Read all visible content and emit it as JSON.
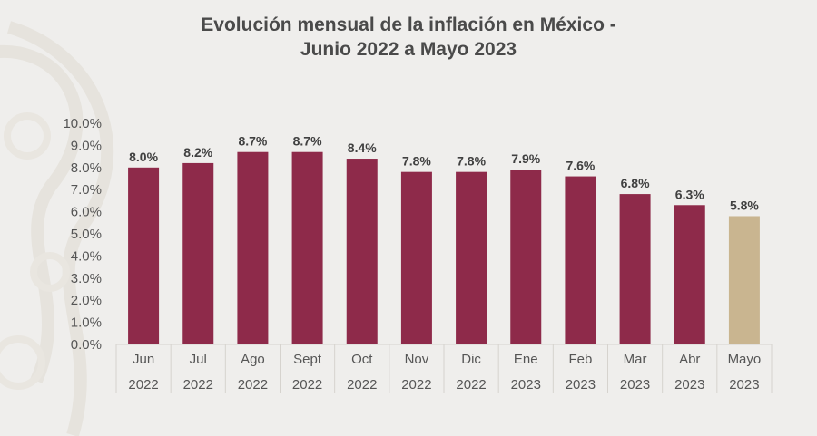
{
  "title_line1": "Evolución mensual de la inflación en México -",
  "title_line2": "Junio 2022 a Mayo 2023",
  "chart_data": {
    "type": "bar",
    "title": "Evolución mensual de la inflación en México - Junio 2022 a Mayo 2023",
    "xlabel": "",
    "ylabel": "",
    "ylim": [
      0,
      10
    ],
    "grid": false,
    "categories": [
      {
        "month": "Jun",
        "year": "2022"
      },
      {
        "month": "Jul",
        "year": "2022"
      },
      {
        "month": "Ago",
        "year": "2022"
      },
      {
        "month": "Sept",
        "year": "2022"
      },
      {
        "month": "Oct",
        "year": "2022"
      },
      {
        "month": "Nov",
        "year": "2022"
      },
      {
        "month": "Dic",
        "year": "2022"
      },
      {
        "month": "Ene",
        "year": "2023"
      },
      {
        "month": "Feb",
        "year": "2023"
      },
      {
        "month": "Mar",
        "year": "2023"
      },
      {
        "month": "Abr",
        "year": "2023"
      },
      {
        "month": "Mayo",
        "year": "2023"
      }
    ],
    "values": [
      8.0,
      8.2,
      8.7,
      8.7,
      8.4,
      7.8,
      7.8,
      7.9,
      7.6,
      6.8,
      6.3,
      5.8
    ],
    "data_labels": [
      "8.0%",
      "8.2%",
      "8.7%",
      "8.7%",
      "8.4%",
      "7.8%",
      "7.8%",
      "7.9%",
      "7.6%",
      "6.8%",
      "6.3%",
      "5.8%"
    ],
    "y_ticks": [
      0,
      1,
      2,
      3,
      4,
      5,
      6,
      7,
      8,
      9,
      10
    ],
    "y_tick_labels": [
      "0.0%",
      "1.0%",
      "2.0%",
      "3.0%",
      "4.0%",
      "5.0%",
      "6.0%",
      "7.0%",
      "8.0%",
      "9.0%",
      "10.0%"
    ],
    "colors": {
      "bar": "#8e2a4a",
      "highlight_bar": "#c9b590",
      "text": "#404040",
      "axis_text": "#555555",
      "table_line": "#d6d3ce"
    },
    "highlight_index": 11
  }
}
